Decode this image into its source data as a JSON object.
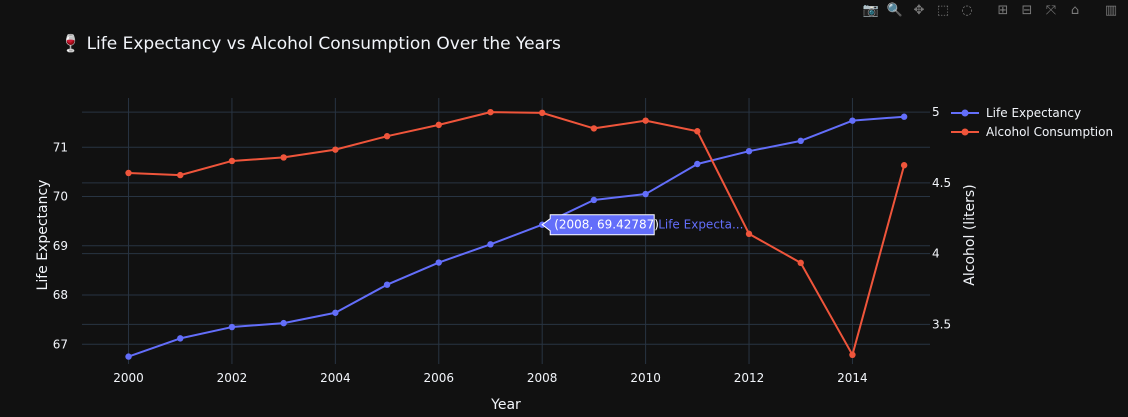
{
  "toolbar": {
    "buttons": [
      {
        "name": "camera-icon",
        "glyph": "📷"
      },
      {
        "name": "zoom-icon",
        "glyph": "🔍",
        "active": true
      },
      {
        "name": "pan-icon",
        "glyph": "✥"
      },
      {
        "name": "box-select-icon",
        "glyph": "⬚"
      },
      {
        "name": "lasso-select-icon",
        "glyph": "◌"
      },
      {
        "name": "zoom-in-icon",
        "glyph": "⊞"
      },
      {
        "name": "zoom-out-icon",
        "glyph": "⊟"
      },
      {
        "name": "autoscale-icon",
        "glyph": "⤧"
      },
      {
        "name": "reset-axes-icon",
        "glyph": "⌂"
      },
      {
        "name": "plotly-logo-icon",
        "glyph": "▥"
      }
    ]
  },
  "chart_data": {
    "type": "line",
    "title": "🍷 Life Expectancy vs Alcohol Consumption Over the Years",
    "xlabel": "Year",
    "ylabel": "Life Expectancy",
    "y2label": "Alcohol (liters)",
    "x": [
      2000,
      2001,
      2002,
      2003,
      2004,
      2005,
      2006,
      2007,
      2008,
      2009,
      2010,
      2011,
      2012,
      2013,
      2014,
      2015
    ],
    "xticks": [
      2000,
      2002,
      2004,
      2006,
      2008,
      2010,
      2012,
      2014
    ],
    "xlim": [
      1999.1,
      2015.5
    ],
    "ylim": [
      66.6,
      72.0
    ],
    "yticks": [
      67,
      68,
      69,
      70,
      71
    ],
    "y2lim": [
      3.22,
      5.1
    ],
    "y2ticks": [
      3.5,
      4,
      4.5,
      5
    ],
    "grid": true,
    "legend_position": "top-right",
    "series": [
      {
        "name": "Life Expectancy",
        "axis": "left",
        "color": "#636efa",
        "values": [
          66.75,
          67.12,
          67.35,
          67.43,
          67.64,
          68.21,
          68.66,
          69.03,
          69.42787,
          69.93,
          70.05,
          70.66,
          70.92,
          71.13,
          71.54,
          71.62
        ]
      },
      {
        "name": "Alcohol Consumption",
        "axis": "right",
        "color": "#ef553b",
        "values": [
          4.57,
          4.555,
          4.655,
          4.68,
          4.735,
          4.83,
          4.91,
          5.0,
          4.995,
          4.885,
          4.94,
          4.865,
          4.14,
          3.935,
          3.285,
          4.625
        ]
      }
    ],
    "hover": {
      "series_index": 0,
      "point_index": 8,
      "label": "(2008, 69.42787)",
      "series_label": "Life Expecta..."
    }
  }
}
